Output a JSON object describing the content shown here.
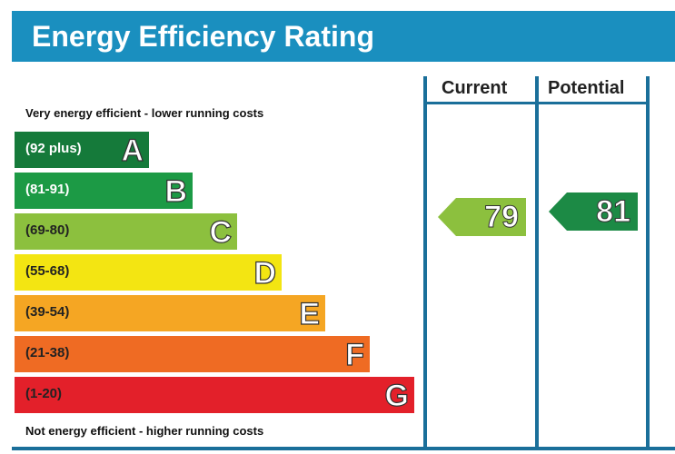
{
  "header": {
    "title": "Energy Efficiency Rating",
    "color": "#1a8fbf"
  },
  "columns": {
    "current": "Current",
    "potential": "Potential"
  },
  "notes": {
    "top": "Very energy efficient - lower running costs",
    "bottom": "Not energy efficient - higher running costs"
  },
  "bands": [
    {
      "range": "(92 plus)",
      "letter": "A",
      "color": "#157a3a"
    },
    {
      "range": "(81-91)",
      "letter": "B",
      "color": "#1c9a45"
    },
    {
      "range": "(69-80)",
      "letter": "C",
      "color": "#8cc03e"
    },
    {
      "range": "(55-68)",
      "letter": "D",
      "color": "#f3e512"
    },
    {
      "range": "(39-54)",
      "letter": "E",
      "color": "#f5a623"
    },
    {
      "range": "(21-38)",
      "letter": "F",
      "color": "#ef6b23"
    },
    {
      "range": "(1-20)",
      "letter": "G",
      "color": "#e3202a"
    }
  ],
  "ratings": {
    "current": {
      "value": "79",
      "band": "C",
      "color": "#8cc03e"
    },
    "potential": {
      "value": "81",
      "band": "B",
      "color": "#1c8a45"
    }
  }
}
